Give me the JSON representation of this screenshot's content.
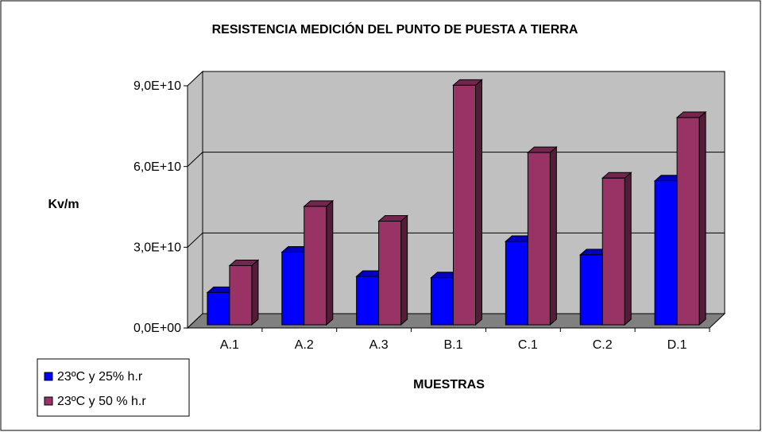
{
  "chart_data": {
    "type": "bar3d",
    "title": "RESISTENCIA MEDICIÓN DEL PUNTO DE PUESTA A TIERRA",
    "ylabel": "Kv/m",
    "xlabel": "MUESTRAS",
    "categories": [
      "A.1",
      "A.2",
      "A.3",
      "B.1",
      "C.1",
      "C.2",
      "D.1"
    ],
    "series": [
      {
        "name": "23ºC y 25% h.r",
        "color": "#0000ff",
        "values": [
          12000000000,
          27000000000,
          18000000000,
          17500000000,
          31000000000,
          26000000000,
          53500000000
        ]
      },
      {
        "name": "23ºC y 50 % h.r",
        "color": "#993366",
        "values": [
          22000000000,
          44000000000,
          38500000000,
          89000000000,
          64000000000,
          54500000000,
          77000000000
        ]
      }
    ],
    "ylim": [
      0,
      90000000000
    ],
    "yticks": [
      {
        "value": 0,
        "label": "0,0E+00"
      },
      {
        "value": 30000000000,
        "label": "3,0E+10"
      },
      {
        "value": 60000000000,
        "label": "6,0E+10"
      },
      {
        "value": 90000000000,
        "label": "9,0E+10"
      }
    ],
    "grid": true,
    "legend": "bottom-left"
  }
}
